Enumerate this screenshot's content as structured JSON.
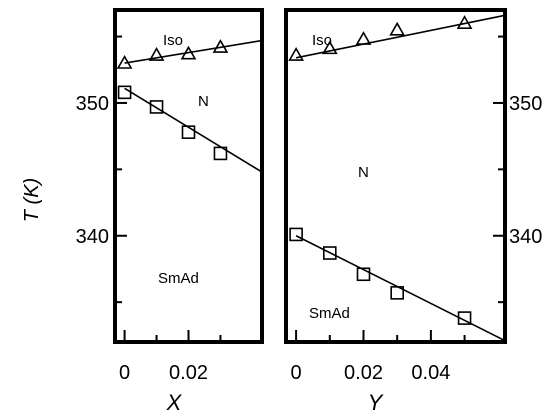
{
  "chart_data": [
    {
      "type": "scatter",
      "xlabel": "X",
      "ylabel": "T (K)",
      "xlim": [
        -0.003,
        0.043
      ],
      "ylim": [
        332,
        357
      ],
      "x_ticks": [
        0,
        0.02
      ],
      "x_minor_ticks": [
        0.01,
        0.03
      ],
      "y_ticks": [
        340,
        350
      ],
      "y_minor_ticks": [
        335,
        345,
        355
      ],
      "y_tick_side": "left",
      "regions": [
        "Iso",
        "N",
        "SmAd"
      ],
      "series": [
        {
          "marker": "triangle",
          "points": [
            [
              0,
              353.0
            ],
            [
              0.01,
              353.6
            ],
            [
              0.02,
              353.7
            ],
            [
              0.03,
              354.2
            ]
          ],
          "fit": [
            [
              0,
              353.0
            ],
            [
              0.043,
              354.7
            ]
          ]
        },
        {
          "marker": "square",
          "points": [
            [
              0,
              350.8
            ],
            [
              0.01,
              349.7
            ],
            [
              0.02,
              347.8
            ],
            [
              0.03,
              346.2
            ]
          ],
          "fit": [
            [
              0,
              351.1
            ],
            [
              0.043,
              344.8
            ]
          ]
        }
      ]
    },
    {
      "type": "scatter",
      "xlabel": "Y",
      "ylabel": "",
      "xlim": [
        -0.003,
        0.062
      ],
      "ylim": [
        332,
        357
      ],
      "x_ticks": [
        0,
        0.02,
        0.04
      ],
      "x_minor_ticks": [
        0.01,
        0.03,
        0.05
      ],
      "y_ticks": [
        340,
        350
      ],
      "y_minor_ticks": [
        335,
        345,
        355
      ],
      "y_tick_side": "right",
      "regions": [
        "Iso",
        "N",
        "SmAd"
      ],
      "series": [
        {
          "marker": "triangle",
          "points": [
            [
              0,
              353.6
            ],
            [
              0.01,
              354.1
            ],
            [
              0.02,
              354.8
            ],
            [
              0.03,
              355.5
            ],
            [
              0.05,
              356.0
            ]
          ],
          "fit": [
            [
              0,
              353.4
            ],
            [
              0.062,
              356.6
            ]
          ]
        },
        {
          "marker": "square",
          "points": [
            [
              0,
              340.1
            ],
            [
              0.01,
              338.7
            ],
            [
              0.02,
              337.1
            ],
            [
              0.03,
              335.7
            ],
            [
              0.05,
              333.8
            ]
          ],
          "fit": [
            [
              0,
              340.0
            ],
            [
              0.062,
              332.1
            ]
          ]
        }
      ]
    }
  ]
}
